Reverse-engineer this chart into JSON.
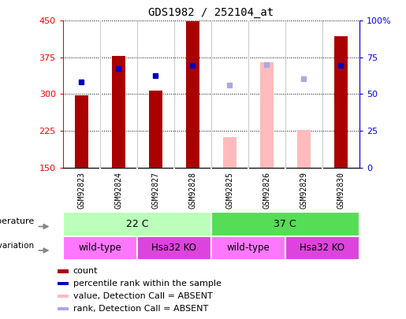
{
  "title": "GDS1982 / 252104_at",
  "samples": [
    "GSM92823",
    "GSM92824",
    "GSM92827",
    "GSM92828",
    "GSM92825",
    "GSM92826",
    "GSM92829",
    "GSM92830"
  ],
  "count_values": [
    298,
    378,
    308,
    449,
    null,
    null,
    null,
    418
  ],
  "count_absent_values": [
    null,
    null,
    null,
    null,
    213,
    365,
    227,
    null
  ],
  "rank_values": [
    325,
    352,
    338,
    358,
    null,
    null,
    null,
    358
  ],
  "rank_absent_values": [
    null,
    null,
    null,
    null,
    318,
    360,
    332,
    null
  ],
  "ylim_left": [
    150,
    450
  ],
  "ylim_right": [
    0,
    100
  ],
  "yticks_left": [
    150,
    225,
    300,
    375,
    450
  ],
  "yticks_right": [
    0,
    25,
    50,
    75,
    100
  ],
  "bar_color_present": "#aa0000",
  "bar_color_absent": "#ffbbbb",
  "dot_color_present": "#0000bb",
  "dot_color_absent": "#aaaadd",
  "plot_bg_color": "#ffffff",
  "temp_22_color": "#bbffbb",
  "temp_37_color": "#55dd55",
  "geno_wt_color": "#ff77ff",
  "geno_ko_color": "#dd44dd",
  "xtick_bg_color": "#cccccc",
  "bar_width": 0.35,
  "legend_items": [
    {
      "label": "count",
      "color": "#aa0000"
    },
    {
      "label": "percentile rank within the sample",
      "color": "#0000bb"
    },
    {
      "label": "value, Detection Call = ABSENT",
      "color": "#ffbbbb"
    },
    {
      "label": "rank, Detection Call = ABSENT",
      "color": "#aaaadd"
    }
  ]
}
